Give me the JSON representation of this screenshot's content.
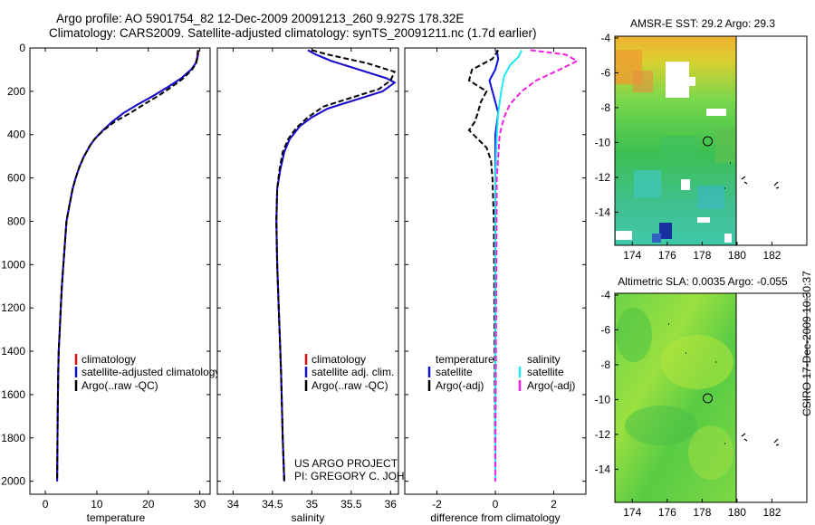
{
  "header": {
    "line1": "Argo profile: AO 5901754_82 12-Dec-2009 20091213_260 9.927S 178.32E",
    "line2": "Climatology: CARS2009. Satellite-adjusted climatology: synTS_20091211.nc (1.7d earlier)"
  },
  "panels": {
    "temperature": {
      "xlabel": "temperature",
      "xlim": [
        -3,
        32
      ],
      "ylim": [
        0,
        2060
      ],
      "xticks": [
        "0",
        "10",
        "20",
        "30"
      ],
      "xtick_vals": [
        0,
        10,
        20,
        30
      ],
      "yticks": [
        "0",
        "200",
        "400",
        "600",
        "800",
        "1000",
        "1200",
        "1400",
        "1600",
        "1800",
        "2000"
      ],
      "ytick_vals": [
        0,
        200,
        400,
        600,
        800,
        1000,
        1200,
        1400,
        1600,
        1800,
        2000
      ],
      "legend": [
        "climatology",
        "satellite-adjusted climatology",
        "Argo(..raw -QC)"
      ]
    },
    "salinity": {
      "xlabel": "salinity",
      "xlim": [
        33.8,
        36.1
      ],
      "ylim": [
        0,
        2060
      ],
      "xticks": [
        "34",
        "34.5",
        "35",
        "35.5",
        "36"
      ],
      "xtick_vals": [
        34,
        34.5,
        35,
        35.5,
        36
      ],
      "legend": [
        "climatology",
        "satellite adj. clim.",
        "Argo(..raw -QC)"
      ],
      "note_line1": "US ARGO PROJECT",
      "note_line2": "PI: GREGORY C. JOHNSON"
    },
    "difference": {
      "xlabel": "difference from climatology",
      "xlim": [
        -3.1,
        3.1
      ],
      "ylim": [
        0,
        2060
      ],
      "xticks": [
        "-2",
        "0",
        "2"
      ],
      "xtick_vals": [
        -2,
        0,
        2
      ],
      "legend_head_left": "temperature",
      "legend_head_right": "salinity",
      "legend_left": [
        "satellite",
        "Argo(-adj)"
      ],
      "legend_right": [
        "satellite",
        "Argo(-adj)"
      ]
    }
  },
  "maps": {
    "sst": {
      "title": "AMSR-E SST: 29.2 Argo: 29.3",
      "xticks": [
        "174",
        "176",
        "178",
        "180",
        "182"
      ],
      "yticks": [
        "-4",
        "-6",
        "-8",
        "-10",
        "-12",
        "-14"
      ],
      "xlim": [
        173,
        184
      ],
      "ylim": [
        -15.9,
        -3.9
      ],
      "float_position": [
        178.32,
        -9.927
      ]
    },
    "sla": {
      "title": "Altimetric SLA: 0.0035 Argo: -0.055",
      "xticks": [
        "174",
        "176",
        "178",
        "180",
        "182"
      ],
      "yticks": [
        "-4",
        "-6",
        "-8",
        "-10",
        "-12",
        "-14"
      ],
      "xlim": [
        173,
        184
      ],
      "ylim": [
        -15.9,
        -3.9
      ],
      "float_position": [
        178.32,
        -9.927
      ]
    }
  },
  "stamp": "CSIRO 17-Dec-2009 10:30:37",
  "colors": {
    "climatology": "#e01010",
    "satellite": "#1010d8",
    "argo": "#000000",
    "salinity_satellite": "#20e8f0",
    "salinity_argo": "#f020e0"
  },
  "chart_data": [
    {
      "type": "line",
      "xlabel": "temperature",
      "ylabel": "",
      "xlim": [
        -3,
        32
      ],
      "ylim": [
        2060,
        0
      ],
      "series": [
        {
          "name": "climatology",
          "x": [
            29.6,
            29.5,
            29.2,
            28.3,
            26.4,
            23.8,
            21.0,
            18.0,
            15.2,
            13.0,
            11.2,
            9.6,
            8.7,
            8.0,
            7.5,
            6.6,
            5.9,
            5.3,
            4.9,
            4.5,
            4.1,
            3.8,
            3.5,
            3.2,
            3.0,
            2.8,
            2.6,
            2.5,
            2.4,
            2.3
          ],
          "y": [
            10,
            40,
            70,
            100,
            140,
            180,
            220,
            260,
            300,
            340,
            380,
            420,
            450,
            480,
            500,
            550,
            600,
            650,
            700,
            750,
            800,
            900,
            1000,
            1100,
            1200,
            1300,
            1400,
            1500,
            1700,
            2000
          ]
        },
        {
          "name": "satellite-adjusted climatology",
          "x": [
            29.7,
            29.6,
            29.2,
            28.3,
            26.4,
            23.8,
            21.0,
            18.0,
            15.2,
            13.0,
            11.2,
            9.6,
            8.7,
            8.0,
            7.5,
            6.6,
            5.9,
            5.3,
            4.9,
            4.5,
            4.1,
            3.8,
            3.5,
            3.2,
            3.0,
            2.8,
            2.6,
            2.5,
            2.4,
            2.3
          ],
          "y": [
            10,
            40,
            70,
            100,
            140,
            180,
            220,
            260,
            300,
            340,
            380,
            420,
            450,
            480,
            500,
            550,
            600,
            650,
            700,
            750,
            800,
            900,
            1000,
            1100,
            1200,
            1300,
            1400,
            1500,
            1700,
            2000
          ]
        },
        {
          "name": "Argo(..raw -QC)",
          "x": [
            29.7,
            29.6,
            29.3,
            28.5,
            26.8,
            24.5,
            22.0,
            19.2,
            16.5,
            13.5,
            11.3,
            9.6,
            8.7,
            8.0,
            7.5,
            6.6,
            5.9,
            5.3,
            4.9,
            4.5,
            4.1,
            3.8,
            3.5,
            3.2,
            3.0,
            2.8,
            2.6,
            2.5,
            2.4,
            2.3
          ],
          "y": [
            10,
            40,
            70,
            100,
            140,
            180,
            220,
            260,
            300,
            340,
            380,
            420,
            450,
            480,
            500,
            550,
            600,
            650,
            700,
            750,
            800,
            900,
            1000,
            1100,
            1200,
            1300,
            1400,
            1500,
            1700,
            2000
          ]
        }
      ]
    },
    {
      "type": "line",
      "xlabel": "salinity",
      "ylabel": "",
      "xlim": [
        33.8,
        36.1
      ],
      "ylim": [
        2060,
        0
      ],
      "series": [
        {
          "name": "climatology",
          "x": [
            34.95,
            35.05,
            35.25,
            35.6,
            35.95,
            36.05,
            35.9,
            35.55,
            35.2,
            35.0,
            34.85,
            34.72,
            34.65,
            34.6,
            34.56,
            34.55,
            34.56,
            34.58,
            34.61,
            34.63,
            34.65
          ],
          "y": [
            10,
            30,
            60,
            100,
            140,
            160,
            200,
            240,
            280,
            320,
            360,
            420,
            480,
            560,
            650,
            800,
            1000,
            1200,
            1500,
            1800,
            2000
          ]
        },
        {
          "name": "satellite adj. clim.",
          "x": [
            34.95,
            35.05,
            35.25,
            35.6,
            35.95,
            36.05,
            35.9,
            35.55,
            35.2,
            35.0,
            34.85,
            34.72,
            34.65,
            34.6,
            34.56,
            34.55,
            34.56,
            34.58,
            34.61,
            34.63,
            34.65
          ],
          "y": [
            10,
            30,
            60,
            100,
            140,
            160,
            200,
            240,
            280,
            320,
            360,
            420,
            480,
            560,
            650,
            800,
            1000,
            1200,
            1500,
            1800,
            2000
          ]
        },
        {
          "name": "Argo(..raw -QC)",
          "x": [
            35.0,
            35.2,
            35.7,
            36.05,
            36.0,
            35.85,
            35.5,
            35.15,
            34.95,
            34.8,
            34.7,
            34.63,
            34.59,
            34.56,
            34.55,
            34.56,
            34.58,
            34.61,
            34.63,
            34.65
          ],
          "y": [
            10,
            30,
            70,
            110,
            150,
            190,
            230,
            270,
            320,
            370,
            420,
            480,
            560,
            650,
            800,
            1000,
            1200,
            1500,
            1800,
            2000
          ]
        }
      ]
    },
    {
      "type": "line",
      "xlabel": "difference from climatology",
      "ylabel": "",
      "xlim": [
        -3.1,
        3.1
      ],
      "ylim": [
        2060,
        0
      ],
      "series": [
        {
          "name": "temperature satellite",
          "x": [
            0.05,
            0.1,
            0.0,
            -0.2,
            -0.1,
            0.0,
            0.1,
            0.05,
            0.0,
            0.0,
            0.0,
            0.0,
            0.0
          ],
          "y": [
            10,
            50,
            100,
            150,
            200,
            250,
            300,
            350,
            400,
            500,
            700,
            1000,
            2000
          ]
        },
        {
          "name": "temperature Argo(-adj)",
          "x": [
            0.1,
            -0.1,
            -0.8,
            -0.9,
            -0.3,
            -0.5,
            -0.6,
            -0.7,
            -0.9,
            -0.6,
            -0.3,
            -0.15,
            -0.1,
            -0.05,
            0.0
          ],
          "y": [
            10,
            50,
            100,
            150,
            200,
            250,
            300,
            340,
            380,
            420,
            460,
            520,
            600,
            800,
            2000
          ]
        },
        {
          "name": "salinity satellite",
          "x": [
            0.9,
            0.8,
            0.5,
            0.3,
            0.2,
            0.1,
            0.05,
            0.0,
            0.0,
            0.0
          ],
          "y": [
            10,
            40,
            80,
            130,
            200,
            300,
            400,
            600,
            1000,
            2000
          ]
        },
        {
          "name": "salinity Argo(-adj)",
          "x": [
            1.2,
            2.4,
            2.8,
            2.2,
            1.4,
            0.9,
            0.5,
            0.3,
            0.15,
            0.05,
            0.0
          ],
          "y": [
            10,
            30,
            60,
            100,
            150,
            200,
            260,
            320,
            400,
            600,
            2000
          ]
        }
      ]
    }
  ]
}
